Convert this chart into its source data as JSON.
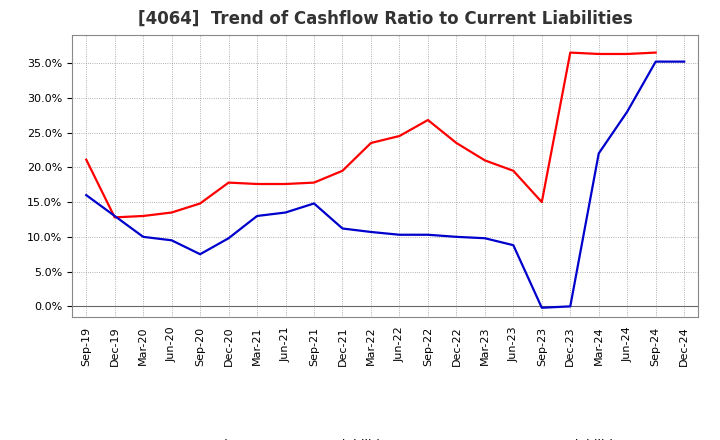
{
  "title": "[4064]  Trend of Cashflow Ratio to Current Liabilities",
  "x_labels": [
    "Sep-19",
    "Dec-19",
    "Mar-20",
    "Jun-20",
    "Sep-20",
    "Dec-20",
    "Mar-21",
    "Jun-21",
    "Sep-21",
    "Dec-21",
    "Mar-22",
    "Jun-22",
    "Sep-22",
    "Dec-22",
    "Mar-23",
    "Jun-23",
    "Sep-23",
    "Dec-23",
    "Mar-24",
    "Jun-24",
    "Sep-24",
    "Dec-24"
  ],
  "operating_cf": [
    0.211,
    0.128,
    0.13,
    0.135,
    0.148,
    0.178,
    0.176,
    0.176,
    0.178,
    0.195,
    0.235,
    0.245,
    0.268,
    0.235,
    0.21,
    0.195,
    0.15,
    0.365,
    0.363,
    0.363,
    0.365,
    null
  ],
  "free_cf": [
    0.16,
    0.13,
    0.1,
    0.095,
    0.075,
    0.098,
    0.13,
    0.135,
    0.148,
    0.112,
    0.107,
    0.103,
    0.103,
    0.1,
    0.098,
    0.088,
    -0.002,
    0.0,
    0.22,
    0.28,
    0.352,
    0.352
  ],
  "operating_color": "#FF0000",
  "free_color": "#0000CC",
  "background_color": "#FFFFFF",
  "plot_bg_color": "#FFFFFF",
  "grid_color": "#999999",
  "ylim": [
    -0.015,
    0.39
  ],
  "yticks": [
    0.0,
    0.05,
    0.1,
    0.15,
    0.2,
    0.25,
    0.3,
    0.35
  ],
  "legend_op": "Operating CF to Current Liabilities",
  "legend_free": "Free CF to Current Liabilities",
  "title_fontsize": 12,
  "tick_fontsize": 8,
  "legend_fontsize": 9,
  "line_width": 1.6
}
